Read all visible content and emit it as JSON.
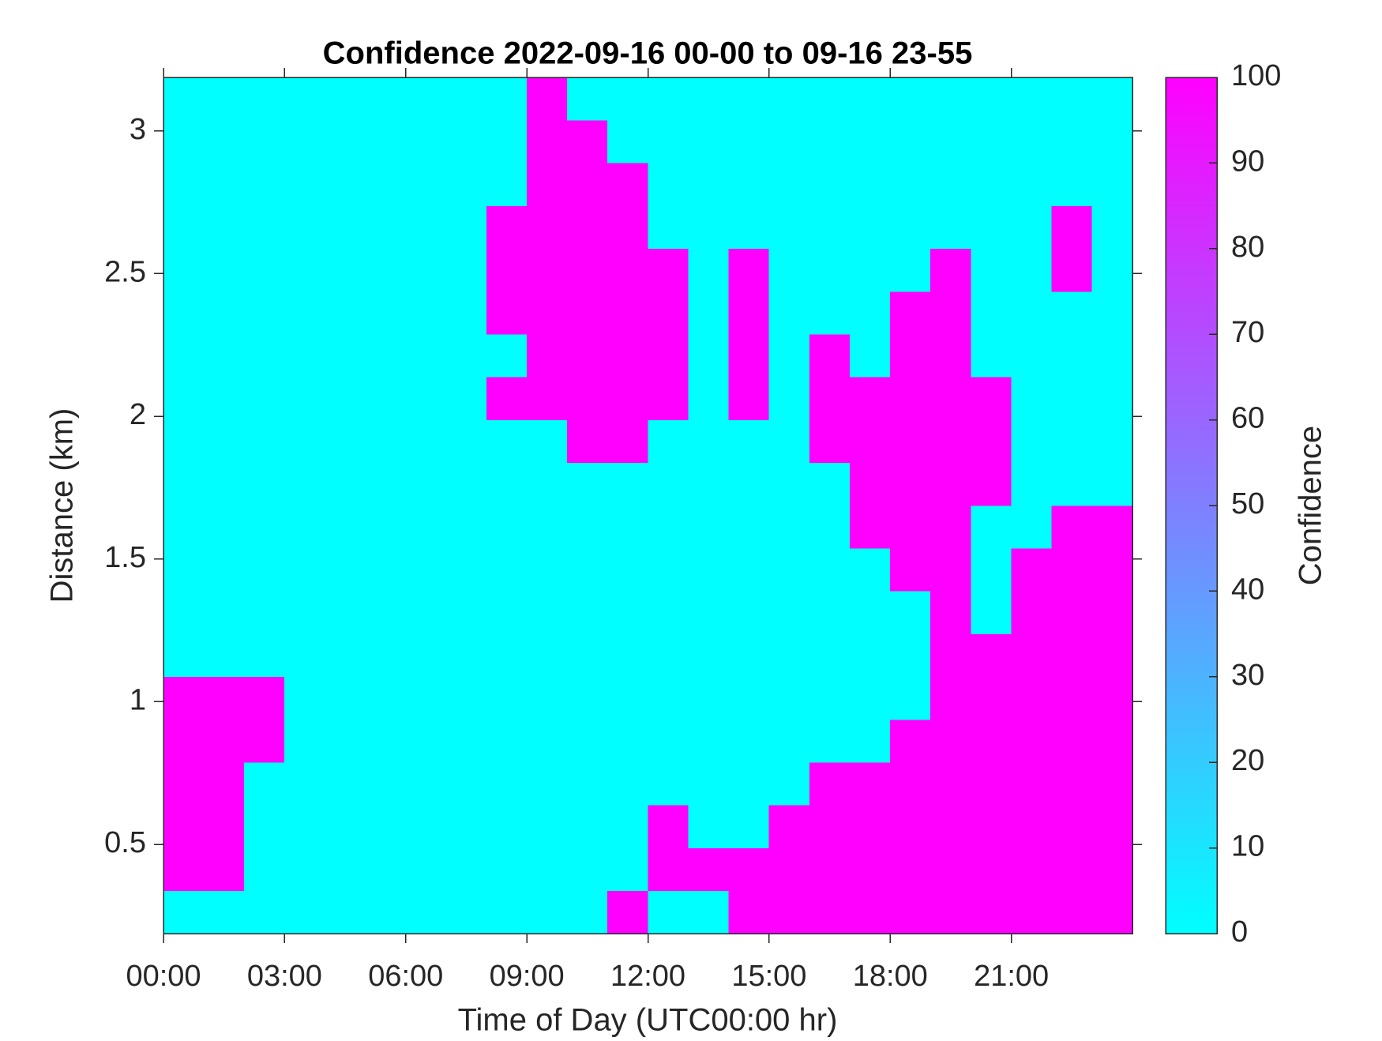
{
  "chart_data": {
    "type": "heatmap",
    "title": "Confidence 2022-09-16 00-00 to 09-16 23-55",
    "x_label": "Time of Day (UTC00:00 hr)",
    "y_label": "Distance (km)",
    "colorbar_label": "Confidence",
    "x": [
      0.5,
      1.5,
      2.5,
      3.5,
      4.5,
      5.5,
      6.5,
      7.5,
      8.5,
      9.5,
      10.5,
      11.5,
      12.5,
      13.5,
      14.5,
      15.5,
      16.5,
      17.5,
      18.5,
      19.5,
      20.5,
      21.5,
      22.5,
      23.5
    ],
    "y": [
      0.2625,
      0.4125,
      0.5625,
      0.7125,
      0.8625,
      1.0125,
      1.1625,
      1.3125,
      1.4625,
      1.6125,
      1.7625,
      1.9125,
      2.0625,
      2.2125,
      2.3625,
      2.5125,
      2.6625,
      2.8125,
      2.9625,
      3.1125
    ],
    "z": [
      [
        0,
        0,
        0,
        0,
        0,
        0,
        0,
        0,
        0,
        0,
        0,
        100,
        0,
        0,
        100,
        100,
        100,
        100,
        100,
        100,
        100,
        100,
        100,
        100
      ],
      [
        100,
        100,
        0,
        0,
        0,
        0,
        0,
        0,
        0,
        0,
        0,
        0,
        100,
        100,
        100,
        100,
        100,
        100,
        100,
        100,
        100,
        100,
        100,
        100
      ],
      [
        100,
        100,
        0,
        0,
        0,
        0,
        0,
        0,
        0,
        0,
        0,
        0,
        100,
        0,
        0,
        100,
        100,
        100,
        100,
        100,
        100,
        100,
        100,
        100
      ],
      [
        100,
        100,
        0,
        0,
        0,
        0,
        0,
        0,
        0,
        0,
        0,
        0,
        0,
        0,
        0,
        0,
        100,
        100,
        100,
        100,
        100,
        100,
        100,
        100
      ],
      [
        100,
        100,
        100,
        0,
        0,
        0,
        0,
        0,
        0,
        0,
        0,
        0,
        0,
        0,
        0,
        0,
        0,
        0,
        100,
        100,
        100,
        100,
        100,
        100
      ],
      [
        100,
        100,
        100,
        0,
        0,
        0,
        0,
        0,
        0,
        0,
        0,
        0,
        0,
        0,
        0,
        0,
        0,
        0,
        0,
        100,
        100,
        100,
        100,
        100
      ],
      [
        0,
        0,
        0,
        0,
        0,
        0,
        0,
        0,
        0,
        0,
        0,
        0,
        0,
        0,
        0,
        0,
        0,
        0,
        0,
        100,
        100,
        100,
        100,
        100
      ],
      [
        0,
        0,
        0,
        0,
        0,
        0,
        0,
        0,
        0,
        0,
        0,
        0,
        0,
        0,
        0,
        0,
        0,
        0,
        0,
        100,
        0,
        100,
        100,
        100
      ],
      [
        0,
        0,
        0,
        0,
        0,
        0,
        0,
        0,
        0,
        0,
        0,
        0,
        0,
        0,
        0,
        0,
        0,
        0,
        100,
        100,
        0,
        100,
        100,
        100
      ],
      [
        0,
        0,
        0,
        0,
        0,
        0,
        0,
        0,
        0,
        0,
        0,
        0,
        0,
        0,
        0,
        0,
        0,
        100,
        100,
        100,
        0,
        0,
        100,
        100
      ],
      [
        0,
        0,
        0,
        0,
        0,
        0,
        0,
        0,
        0,
        0,
        0,
        0,
        0,
        0,
        0,
        0,
        0,
        100,
        100,
        100,
        100,
        0,
        0,
        0
      ],
      [
        0,
        0,
        0,
        0,
        0,
        0,
        0,
        0,
        0,
        0,
        100,
        100,
        0,
        0,
        0,
        0,
        100,
        100,
        100,
        100,
        100,
        0,
        0,
        0
      ],
      [
        0,
        0,
        0,
        0,
        0,
        0,
        0,
        0,
        100,
        100,
        100,
        100,
        100,
        0,
        100,
        0,
        100,
        100,
        100,
        100,
        100,
        0,
        0,
        0
      ],
      [
        0,
        0,
        0,
        0,
        0,
        0,
        0,
        0,
        0,
        100,
        100,
        100,
        100,
        0,
        100,
        0,
        100,
        0,
        100,
        100,
        0,
        0,
        0,
        0
      ],
      [
        0,
        0,
        0,
        0,
        0,
        0,
        0,
        0,
        100,
        100,
        100,
        100,
        100,
        0,
        100,
        0,
        0,
        0,
        100,
        100,
        0,
        0,
        0,
        0
      ],
      [
        0,
        0,
        0,
        0,
        0,
        0,
        0,
        0,
        100,
        100,
        100,
        100,
        100,
        0,
        100,
        0,
        0,
        0,
        0,
        100,
        0,
        0,
        100,
        0
      ],
      [
        0,
        0,
        0,
        0,
        0,
        0,
        0,
        0,
        100,
        100,
        100,
        100,
        0,
        0,
        0,
        0,
        0,
        0,
        0,
        0,
        0,
        0,
        100,
        0
      ],
      [
        0,
        0,
        0,
        0,
        0,
        0,
        0,
        0,
        0,
        100,
        100,
        100,
        0,
        0,
        0,
        0,
        0,
        0,
        0,
        0,
        0,
        0,
        0,
        0
      ],
      [
        0,
        0,
        0,
        0,
        0,
        0,
        0,
        0,
        0,
        100,
        100,
        0,
        0,
        0,
        0,
        0,
        0,
        0,
        0,
        0,
        0,
        0,
        0,
        0
      ],
      [
        0,
        0,
        0,
        0,
        0,
        0,
        0,
        0,
        0,
        100,
        0,
        0,
        0,
        0,
        0,
        0,
        0,
        0,
        0,
        0,
        0,
        0,
        0,
        0
      ]
    ],
    "xlim": [
      0,
      24
    ],
    "xticks": [
      {
        "value": 0,
        "label": "00:00"
      },
      {
        "value": 3,
        "label": "03:00"
      },
      {
        "value": 6,
        "label": "06:00"
      },
      {
        "value": 9,
        "label": "09:00"
      },
      {
        "value": 12,
        "label": "12:00"
      },
      {
        "value": 15,
        "label": "15:00"
      },
      {
        "value": 18,
        "label": "18:00"
      },
      {
        "value": 21,
        "label": "21:00"
      }
    ],
    "ylim": [
      0.1875,
      3.1875
    ],
    "yticks": [
      0.5,
      1,
      1.5,
      2,
      2.5,
      3
    ],
    "clim": [
      0,
      100
    ],
    "cticks": [
      0,
      10,
      20,
      30,
      40,
      50,
      60,
      70,
      80,
      90,
      100
    ],
    "colors": [
      "#00ffff",
      "#ff00ff"
    ]
  }
}
